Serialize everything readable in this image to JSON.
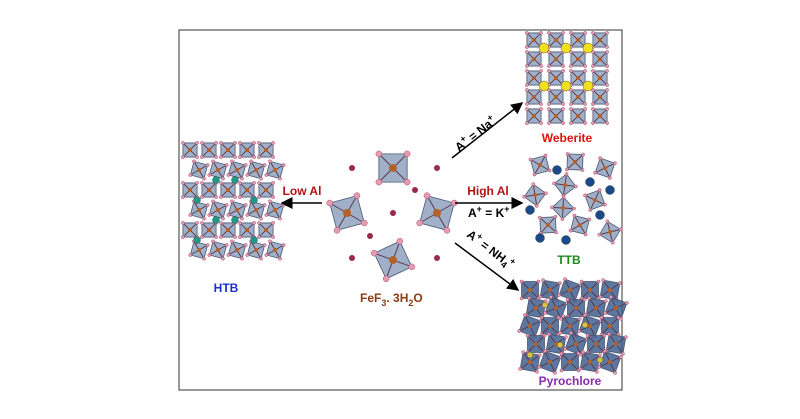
{
  "center_formula": [
    "FeF",
    "3",
    ". 3H",
    "2",
    "O"
  ],
  "arrows": {
    "left": {
      "label": "Low Al"
    },
    "right": {
      "label": "High Al",
      "condition": [
        "A",
        "+",
        " =  K",
        "+"
      ]
    },
    "up": {
      "condition": [
        "A",
        "+",
        " = Na",
        "+"
      ]
    },
    "down": {
      "condition": [
        "A",
        "+",
        " = NH",
        "4",
        "+"
      ]
    }
  },
  "products": {
    "htb": "HTB",
    "weberite": "Weberite",
    "ttb": "TTB",
    "pyrochlore": "Pyrochlore"
  }
}
